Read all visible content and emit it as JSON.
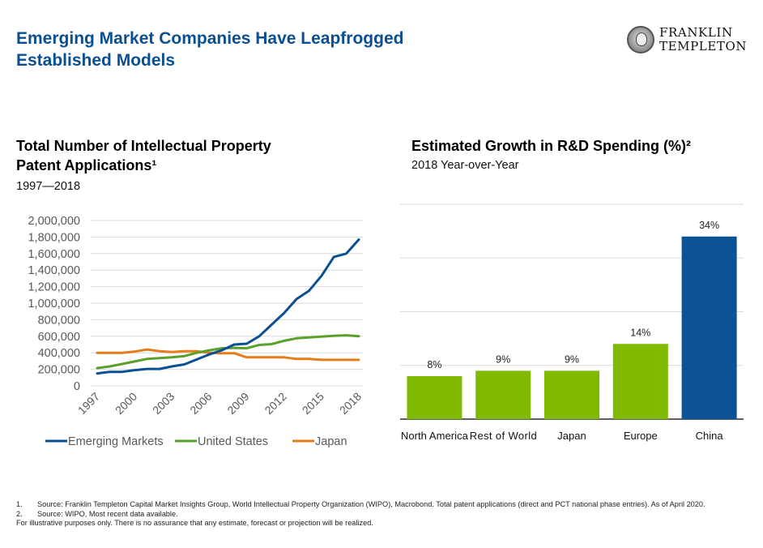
{
  "header": {
    "title_line1": "Emerging Market Companies Have Leapfrogged",
    "title_line2": "Established Models",
    "logo_line1": "FRANKLIN",
    "logo_line2": "TEMPLETON"
  },
  "left_panel": {
    "title_line1": "Total Number of Intellectual Property",
    "title_line2": "Patent Applications¹",
    "subtitle": "1997—2018"
  },
  "right_panel": {
    "title": "Estimated Growth in R&D Spending (%)²",
    "subtitle": "2018 Year-over-Year"
  },
  "footnotes": [
    {
      "num": "1.",
      "text": "Source: Franklin Templeton Capital Market Insights Group, World Intellectual Property Organization (WIPO), Macrobond. Total patent applications (direct and PCT national phase entries). As of April 2020."
    },
    {
      "num": "2.",
      "text": "Source: WIPO, Most recent data available."
    }
  ],
  "disclaimer": "For illustrative purposes only. There is no assurance that any estimate, forecast or projection will be realized.",
  "chart_data": [
    {
      "type": "line",
      "title": "Total Number of Intellectual Property Patent Applications",
      "subtitle": "1997—2018",
      "xlabel": "",
      "ylabel": "",
      "x": [
        1997,
        1998,
        1999,
        2000,
        2001,
        2002,
        2003,
        2004,
        2005,
        2006,
        2007,
        2008,
        2009,
        2010,
        2011,
        2012,
        2013,
        2014,
        2015,
        2016,
        2017,
        2018
      ],
      "xticks": [
        "1997",
        "2000",
        "2003",
        "2006",
        "2009",
        "2012",
        "2015",
        "2018"
      ],
      "ylim": [
        0,
        2000000
      ],
      "yticks": [
        "0",
        "200,000",
        "400,000",
        "600,000",
        "800,000",
        "1,000,000",
        "1,200,000",
        "1,400,000",
        "1,600,000",
        "1,800,000",
        "2,000,000"
      ],
      "grid": true,
      "legend_position": "bottom",
      "series": [
        {
          "name": "Emerging Markets",
          "color": "#0b4f93",
          "values": [
            150000,
            170000,
            170000,
            190000,
            205000,
            205000,
            235000,
            260000,
            320000,
            380000,
            430000,
            500000,
            510000,
            600000,
            740000,
            880000,
            1050000,
            1150000,
            1330000,
            1560000,
            1600000,
            1770000
          ]
        },
        {
          "name": "United States",
          "color": "#5aa02c",
          "values": [
            215000,
            235000,
            265000,
            295000,
            325000,
            335000,
            345000,
            360000,
            400000,
            430000,
            455000,
            460000,
            455000,
            495000,
            505000,
            545000,
            575000,
            585000,
            595000,
            605000,
            612000,
            600000
          ]
        },
        {
          "name": "Japan",
          "color": "#e57d1a",
          "values": [
            400000,
            400000,
            400000,
            415000,
            440000,
            420000,
            410000,
            420000,
            420000,
            400000,
            395000,
            395000,
            345000,
            345000,
            345000,
            345000,
            325000,
            325000,
            315000,
            315000,
            315000,
            315000
          ]
        }
      ]
    },
    {
      "type": "bar",
      "title": "Estimated Growth in R&D Spending (%)",
      "subtitle": "2018 Year-over-Year",
      "categories": [
        "North America",
        "Rest of World",
        "Japan",
        "Europe",
        "China"
      ],
      "values": [
        8,
        9,
        9,
        14,
        34
      ],
      "labels": [
        "8%",
        "9%",
        "9%",
        "14%",
        "34%"
      ],
      "colors": [
        "#7fba00",
        "#7fba00",
        "#7fba00",
        "#7fba00",
        "#0b5394"
      ],
      "ylim": [
        0,
        40
      ],
      "grid": true,
      "xlabel": "",
      "ylabel": ""
    }
  ]
}
